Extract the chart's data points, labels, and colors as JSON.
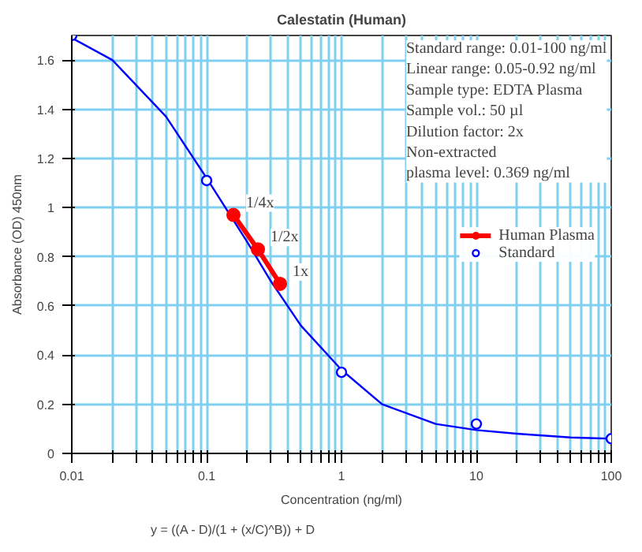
{
  "chart_data": {
    "type": "line",
    "title": "Calestatin (Human)",
    "xlabel": "Concentration (ng/ml)",
    "ylabel": "Absorbance (OD) 450nm",
    "log": "x",
    "xlim": [
      0.01,
      100
    ],
    "xticks": [
      0.01,
      {
        "value": 0.02,
        "label": null
      },
      {
        "value": 0.03,
        "label": null
      },
      {
        "value": 0.04,
        "label": null
      },
      {
        "value": 0.05,
        "label": null
      },
      {
        "value": 0.06,
        "label": null
      },
      {
        "value": 0.07,
        "label": null
      },
      {
        "value": 0.08,
        "label": null
      },
      {
        "value": 0.09,
        "label": null
      },
      0.1,
      {
        "value": 0.2,
        "label": null
      },
      {
        "value": 0.3,
        "label": null
      },
      {
        "value": 0.4,
        "label": null
      },
      {
        "value": 0.5,
        "label": null
      },
      {
        "value": 0.6,
        "label": null
      },
      {
        "value": 0.7,
        "label": null
      },
      {
        "value": 0.8,
        "label": null
      },
      {
        "value": 0.9,
        "label": null
      },
      1,
      {
        "value": 2,
        "label": null
      },
      {
        "value": 3,
        "label": null
      },
      {
        "value": 4,
        "label": null
      },
      {
        "value": 5,
        "label": null
      },
      {
        "value": 6,
        "label": null
      },
      {
        "value": 7,
        "label": null
      },
      {
        "value": 8,
        "label": null
      },
      {
        "value": 9,
        "label": null
      },
      10,
      {
        "value": 20,
        "label": null
      },
      {
        "value": 30,
        "label": null
      },
      {
        "value": 40,
        "label": null
      },
      {
        "value": 50,
        "label": null
      },
      {
        "value": 60,
        "label": null
      },
      {
        "value": 70,
        "label": null
      },
      {
        "value": 80,
        "label": null
      },
      {
        "value": 90,
        "label": null
      },
      100
    ],
    "ylim": [
      0,
      1.7
    ],
    "yticks": [
      0,
      0.2,
      0.4,
      0.6,
      0.8,
      1,
      1.2,
      1.4,
      1.6
    ],
    "grid": true,
    "legend": "right",
    "series": [
      {
        "type": "line",
        "color": "#0000ff",
        "marker": "none",
        "x": [
          0.01,
          0.02,
          0.05,
          0.1,
          0.2,
          0.3,
          0.5,
          1,
          2,
          5,
          10,
          20,
          50,
          100
        ],
        "values": [
          1.69,
          1.6,
          1.37,
          1.12,
          0.86,
          0.7,
          0.52,
          0.34,
          0.2,
          0.12,
          0.095,
          0.08,
          0.065,
          0.06
        ]
      },
      {
        "name": "Human Plasma",
        "color": "#ff0000",
        "marker": "circle",
        "x": [
          0.158,
          0.24,
          0.35
        ],
        "values": [
          0.97,
          0.83,
          0.69
        ]
      },
      {
        "type": "scatter",
        "name": "Standard",
        "color": "#0000ff",
        "marker": "circle",
        "x": [
          0.01,
          0.1,
          1,
          10,
          100
        ],
        "values": [
          1.7,
          1.11,
          0.33,
          0.12,
          0.06
        ]
      }
    ],
    "annotations": [
      {
        "text": "1/4x",
        "x": 0.158,
        "y": 0.97
      },
      {
        "text": "1/2x",
        "x": 0.24,
        "y": 0.83
      },
      {
        "text": "1x",
        "x": 0.35,
        "y": 0.69
      },
      "Standard range: 0.01-100 ng/ml\nLinear range: 0.05-0.92 ng/ml\nSample type: EDTA Plasma\nSample vol.: 50 µl\nDilution factor: 2x\nNon-extracted\nplasma level: 0.369 ng/ml",
      "y = ((A - D)/(1 + (x/C)^B)) + D"
    ]
  }
}
